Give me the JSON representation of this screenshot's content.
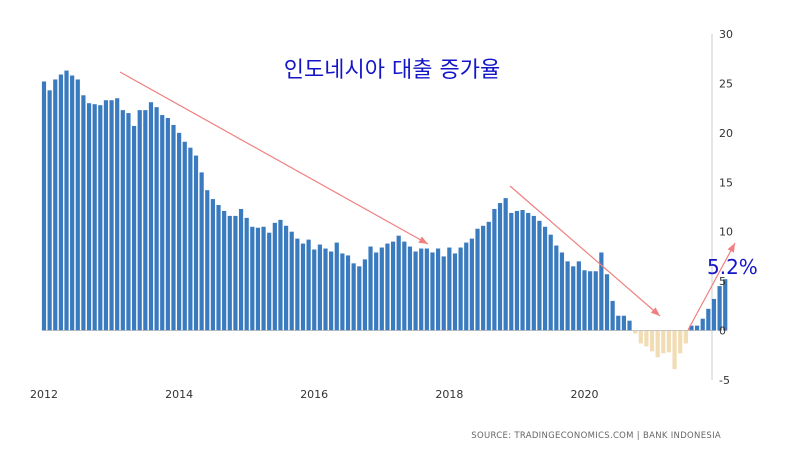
{
  "chart_data": {
    "type": "bar",
    "title": "인도네시아 대출 증가율",
    "annotation": "5.2%",
    "source": "SOURCE: TRADINGECONOMICS.COM | BANK INDONESIA",
    "x_start": "2012-01",
    "frequency": "monthly",
    "x_tick_labels": [
      "2012",
      "2014",
      "2016",
      "2018",
      "2020"
    ],
    "y_tick_labels": [
      "30",
      "25",
      "20",
      "15",
      "10",
      "5",
      "0",
      "-5"
    ],
    "ylim": [
      -5,
      30
    ],
    "grid": false,
    "colors": {
      "positive": "#3a7bbf",
      "negative": "#f2dcb3",
      "trend_arrow": "#f08080",
      "title": "#1515c8"
    },
    "values": [
      25.2,
      24.3,
      25.4,
      25.9,
      26.3,
      25.8,
      25.4,
      23.8,
      23.0,
      22.9,
      22.8,
      23.3,
      23.3,
      23.5,
      22.3,
      22.0,
      20.7,
      22.3,
      22.3,
      23.1,
      22.6,
      21.8,
      21.5,
      20.8,
      20.0,
      19.1,
      18.5,
      17.7,
      16.0,
      14.2,
      13.3,
      12.7,
      12.1,
      11.6,
      11.6,
      12.3,
      11.4,
      10.5,
      10.4,
      10.5,
      9.9,
      10.9,
      11.2,
      10.6,
      10.0,
      9.3,
      8.8,
      9.2,
      8.2,
      8.7,
      8.3,
      8.0,
      8.9,
      7.8,
      7.6,
      6.8,
      6.5,
      7.2,
      8.5,
      7.9,
      8.4,
      8.8,
      9.0,
      9.6,
      9.0,
      8.5,
      8.0,
      8.3,
      8.3,
      7.9,
      8.3,
      7.5,
      8.4,
      7.8,
      8.4,
      8.9,
      9.3,
      10.3,
      10.6,
      11.0,
      12.3,
      12.9,
      13.4,
      11.9,
      12.1,
      12.2,
      11.9,
      11.6,
      11.1,
      10.5,
      9.7,
      8.6,
      7.9,
      7.0,
      6.5,
      7.0,
      6.1,
      6.0,
      6.0,
      7.9,
      5.7,
      3.0,
      1.5,
      1.5,
      1.0,
      -0.3,
      -1.3,
      -1.6,
      -2.1,
      -2.7,
      -2.3,
      -2.2,
      -3.9,
      -2.3,
      -1.3,
      0.5,
      0.5,
      1.2,
      2.2,
      3.2,
      4.5,
      5.2
    ]
  }
}
